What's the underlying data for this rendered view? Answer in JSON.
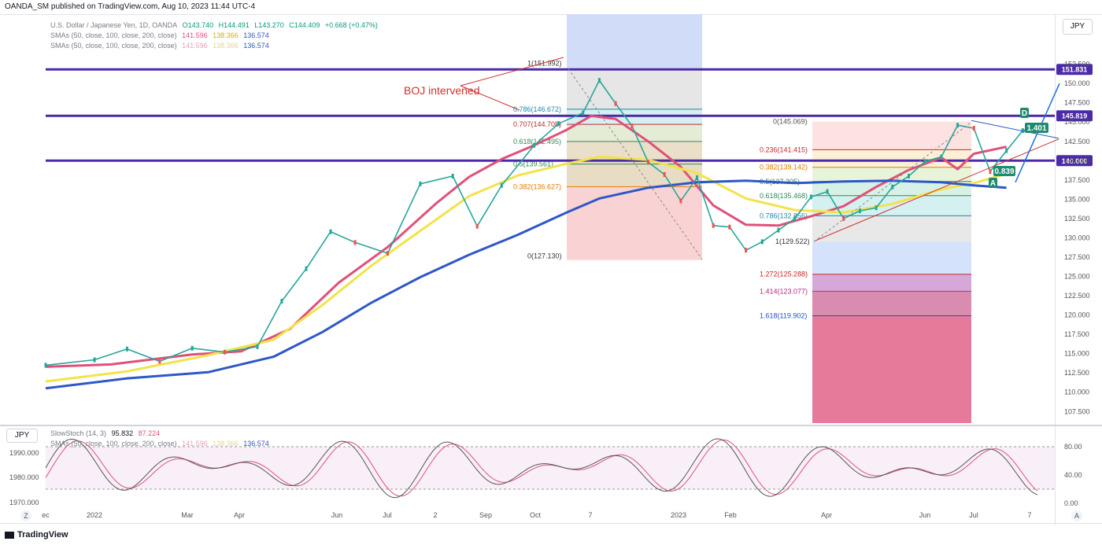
{
  "header": {
    "published": "OANDA_SM published on TradingView.com, Aug 10, 2023 11:44 UTC-4"
  },
  "symbol_badge": "JPY",
  "legend": {
    "instrument": "U.S. Dollar / Japanese Yen, 1D, OANDA",
    "ohlc": {
      "open": "O143.740",
      "high": "H144.491",
      "low": "L143.270",
      "close": "C144.409",
      "change": "+0.668 (+0.47%)"
    },
    "sma_label": "SMAs (50, close, 100, close, 200, close)",
    "sma_values": [
      "141.596",
      "138.366",
      "136.574"
    ],
    "sma2_label": "SMAs (50, close, 100, close, 200, close)",
    "sma2_values": [
      "141.596",
      "138.366",
      "136.574"
    ]
  },
  "indicator": {
    "badge": "JPY",
    "stoch_label": "SlowStoch (14, 3)",
    "stoch_k": "95.832",
    "stoch_d": "87.224",
    "sma_label": "SMAs (50, close, 100, close, 200, close)",
    "sma_values": [
      "141.596",
      "138.366",
      "136.574"
    ],
    "left_ticks": [
      "1990.000",
      "1980.000",
      "1970.000"
    ],
    "right_ticks": [
      "80.00",
      "40.00",
      "0.00"
    ]
  },
  "annotation_text": "BOJ intervened",
  "footer": {
    "brand": "TradingView"
  },
  "zoom": {
    "left": "Z",
    "right": "A"
  },
  "chart_data": {
    "type": "line",
    "title": "U.S. Dollar / Japanese Yen, 1D, OANDA",
    "y_ticks": [
      "152.500",
      "150.000",
      "147.500",
      "145.000",
      "142.500",
      "140.000",
      "137.500",
      "135.000",
      "132.500",
      "130.000",
      "127.500",
      "125.000",
      "122.500",
      "120.000",
      "117.500",
      "115.000",
      "112.500",
      "110.000",
      "107.500"
    ],
    "ylim": [
      106.0,
      154.5
    ],
    "price_labels": [
      {
        "value": 151.831,
        "text": "151.831",
        "color": "#4a2aa8"
      },
      {
        "value": 145.819,
        "text": "145.819",
        "color": "#4a2aa8"
      },
      {
        "value": 140.0,
        "text": "140.000",
        "color": "#4a2aa8"
      }
    ],
    "x_labels": [
      "ec",
      "2022",
      "Mar",
      "Apr",
      "Jun",
      "Jul",
      "2",
      "Sep",
      "Oct",
      "7",
      "2023",
      "Feb",
      "Apr",
      "Jun",
      "Jul",
      "7"
    ],
    "fib_left": {
      "from_label": "1(151.992)",
      "to_label": "0(127.130)",
      "levels": [
        {
          "ratio": "0.786",
          "value": 146.672,
          "text": "0.786(146.672)"
        },
        {
          "ratio": "0.707",
          "value": 144.708,
          "text": "0.707(144.708)"
        },
        {
          "ratio": "0.618",
          "value": 142.495,
          "text": "0.618(142.495)"
        },
        {
          "ratio": "0.5",
          "value": 139.561,
          "text": "0.5(139.561)"
        },
        {
          "ratio": "0.382",
          "value": 136.627,
          "text": "0.382(136.627)"
        }
      ]
    },
    "fib_right": {
      "from_label": "0(145.069)",
      "to_label": "1(129.522)",
      "levels": [
        {
          "ratio": "0.236",
          "value": 141.415,
          "text": "0.236(141.415)"
        },
        {
          "ratio": "0.382",
          "value": 139.142,
          "text": "0.382(139.142)"
        },
        {
          "ratio": "0.5",
          "value": 137.305,
          "text": "0.5(137.305)"
        },
        {
          "ratio": "0.618",
          "value": 135.468,
          "text": "0.618(135.468)"
        },
        {
          "ratio": "0.786",
          "value": 132.856,
          "text": "0.786(132.856)"
        },
        {
          "ratio": "1.272",
          "value": 125.288,
          "text": "1.272(125.288)"
        },
        {
          "ratio": "1.414",
          "value": 123.077,
          "text": "1.414(123.077)"
        },
        {
          "ratio": "1.618",
          "value": 119.902,
          "text": "1.618(119.902)"
        }
      ]
    },
    "pattern_labels": [
      "A",
      "D",
      "1.401",
      "0.839"
    ],
    "series": [
      {
        "name": "SMA 50",
        "color": "#e0507a",
        "values": [
          [
            0,
            113.3
          ],
          [
            8,
            113.6
          ],
          [
            18,
            114.9
          ],
          [
            24,
            115.3
          ],
          [
            30,
            118.2
          ],
          [
            36,
            124.2
          ],
          [
            42,
            128.8
          ],
          [
            48,
            134.5
          ],
          [
            52,
            137.9
          ],
          [
            56,
            140.2
          ],
          [
            60,
            142.0
          ],
          [
            64,
            144.0
          ],
          [
            67,
            145.8
          ],
          [
            70,
            145.4
          ],
          [
            74,
            142.5
          ],
          [
            78,
            139.2
          ],
          [
            82,
            134.2
          ],
          [
            86,
            131.7
          ],
          [
            90,
            131.6
          ],
          [
            94,
            132.8
          ],
          [
            98,
            134.1
          ],
          [
            102,
            136.6
          ],
          [
            106,
            138.8
          ],
          [
            110,
            140.4
          ],
          [
            112,
            138.9
          ],
          [
            114,
            140.9
          ],
          [
            118,
            141.8
          ]
        ]
      },
      {
        "name": "SMA 100",
        "color": "#f2e34a",
        "values": [
          [
            0,
            111.4
          ],
          [
            10,
            112.7
          ],
          [
            20,
            114.8
          ],
          [
            28,
            116.8
          ],
          [
            34,
            121.3
          ],
          [
            40,
            126.4
          ],
          [
            46,
            130.9
          ],
          [
            52,
            135.4
          ],
          [
            58,
            138.1
          ],
          [
            64,
            139.6
          ],
          [
            68,
            140.5
          ],
          [
            74,
            140.1
          ],
          [
            80,
            138.4
          ],
          [
            86,
            135.1
          ],
          [
            92,
            133.6
          ],
          [
            98,
            133.3
          ],
          [
            104,
            134.4
          ],
          [
            110,
            136.3
          ],
          [
            114,
            137.1
          ],
          [
            118,
            138.3
          ]
        ]
      },
      {
        "name": "SMA 200",
        "color": "#2e57c8",
        "values": [
          [
            0,
            110.5
          ],
          [
            10,
            111.8
          ],
          [
            20,
            112.6
          ],
          [
            28,
            114.6
          ],
          [
            34,
            117.8
          ],
          [
            40,
            121.6
          ],
          [
            46,
            124.9
          ],
          [
            52,
            127.8
          ],
          [
            58,
            130.4
          ],
          [
            64,
            133.3
          ],
          [
            68,
            135.1
          ],
          [
            74,
            136.5
          ],
          [
            80,
            137.2
          ],
          [
            86,
            137.4
          ],
          [
            92,
            137.1
          ],
          [
            98,
            137.3
          ],
          [
            104,
            137.4
          ],
          [
            110,
            137.2
          ],
          [
            114,
            136.8
          ],
          [
            118,
            136.5
          ]
        ]
      },
      {
        "name": "Price",
        "color": "#26a69a",
        "values": [
          [
            0,
            113.5
          ],
          [
            6,
            114.2
          ],
          [
            10,
            115.6
          ],
          [
            14,
            114.0
          ],
          [
            18,
            115.7
          ],
          [
            22,
            115.2
          ],
          [
            26,
            115.9
          ],
          [
            29,
            121.8
          ],
          [
            32,
            126.0
          ],
          [
            35,
            130.8
          ],
          [
            38,
            129.4
          ],
          [
            42,
            128.0
          ],
          [
            46,
            137.0
          ],
          [
            50,
            138.0
          ],
          [
            53,
            131.5
          ],
          [
            56,
            136.8
          ],
          [
            60,
            142.0
          ],
          [
            63,
            144.8
          ],
          [
            66,
            146.2
          ],
          [
            68,
            150.4
          ],
          [
            70,
            147.4
          ],
          [
            72,
            144.5
          ],
          [
            74,
            139.8
          ],
          [
            76,
            138.2
          ],
          [
            78,
            134.8
          ],
          [
            80,
            137.8
          ],
          [
            82,
            131.6
          ],
          [
            84,
            131.4
          ],
          [
            86,
            128.4
          ],
          [
            88,
            129.5
          ],
          [
            90,
            131.0
          ],
          [
            92,
            132.5
          ],
          [
            94,
            135.3
          ],
          [
            96,
            136.0
          ],
          [
            98,
            132.5
          ],
          [
            100,
            133.5
          ],
          [
            102,
            133.9
          ],
          [
            104,
            136.6
          ],
          [
            106,
            138.0
          ],
          [
            108,
            139.9
          ],
          [
            110,
            140.5
          ],
          [
            112,
            144.6
          ],
          [
            114,
            144.2
          ],
          [
            116,
            138.6
          ],
          [
            118,
            141.3
          ],
          [
            120,
            143.9
          ],
          [
            122,
            144.4
          ]
        ]
      }
    ]
  }
}
